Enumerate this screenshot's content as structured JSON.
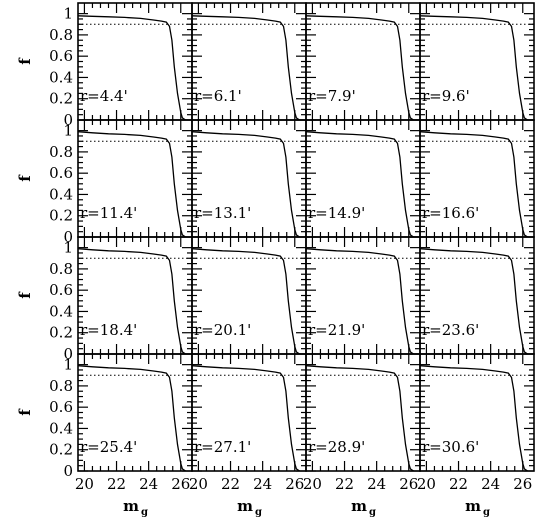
{
  "chart_data": {
    "type": "line",
    "layout": "4x4 grid of panels",
    "xlabel": "m",
    "xlabel_subscript": "g",
    "ylabel": "f",
    "xlim": [
      19.6,
      26.7
    ],
    "ylim": [
      0,
      1.1
    ],
    "xticks": [
      20,
      22,
      24,
      26
    ],
    "yticks": [
      0,
      0.2,
      0.4,
      0.6,
      0.8,
      1
    ],
    "ytick_labels": [
      "0",
      "0.2",
      "0.4",
      "0.6",
      "0.8",
      "1"
    ],
    "reference_line": {
      "y": 0.9,
      "style": "dotted"
    },
    "grid": false,
    "panels": [
      {
        "label": "r=4.4'",
        "x": [
          19.6,
          20.5,
          21.5,
          22.5,
          23.5,
          24.3,
          24.8,
          25.1,
          25.3,
          25.45,
          25.6,
          25.8,
          26.0,
          26.1,
          26.3
        ],
        "y": [
          0.98,
          0.975,
          0.97,
          0.965,
          0.955,
          0.94,
          0.93,
          0.92,
          0.88,
          0.75,
          0.5,
          0.25,
          0.07,
          0.02,
          0.0
        ]
      },
      {
        "label": "r=6.1'",
        "x": [
          19.6,
          20.5,
          21.5,
          22.5,
          23.5,
          24.3,
          24.8,
          25.1,
          25.3,
          25.45,
          25.6,
          25.8,
          26.0,
          26.1,
          26.3
        ],
        "y": [
          0.98,
          0.975,
          0.97,
          0.965,
          0.955,
          0.94,
          0.93,
          0.92,
          0.88,
          0.75,
          0.5,
          0.25,
          0.07,
          0.02,
          0.0
        ]
      },
      {
        "label": "r=7.9'",
        "x": [
          19.6,
          20.5,
          21.5,
          22.5,
          23.5,
          24.3,
          24.8,
          25.1,
          25.3,
          25.45,
          25.6,
          25.8,
          26.0,
          26.1,
          26.3
        ],
        "y": [
          0.98,
          0.975,
          0.97,
          0.965,
          0.955,
          0.94,
          0.93,
          0.92,
          0.88,
          0.75,
          0.5,
          0.25,
          0.07,
          0.02,
          0.0
        ]
      },
      {
        "label": "r=9.6'",
        "x": [
          19.6,
          20.5,
          21.5,
          22.5,
          23.5,
          24.3,
          24.8,
          25.1,
          25.3,
          25.45,
          25.6,
          25.8,
          26.0,
          26.1,
          26.3
        ],
        "y": [
          0.98,
          0.975,
          0.97,
          0.965,
          0.955,
          0.94,
          0.93,
          0.92,
          0.88,
          0.75,
          0.5,
          0.25,
          0.07,
          0.02,
          0.0
        ]
      },
      {
        "label": "r=11.4'",
        "x": [
          19.6,
          20.5,
          21.5,
          22.5,
          23.5,
          24.3,
          24.8,
          25.1,
          25.3,
          25.45,
          25.6,
          25.8,
          26.0,
          26.1,
          26.3
        ],
        "y": [
          0.99,
          0.98,
          0.97,
          0.965,
          0.955,
          0.94,
          0.93,
          0.92,
          0.88,
          0.75,
          0.5,
          0.25,
          0.07,
          0.02,
          0.0
        ]
      },
      {
        "label": "r=13.1'",
        "x": [
          19.6,
          20.5,
          21.5,
          22.5,
          23.5,
          24.3,
          24.8,
          25.1,
          25.3,
          25.45,
          25.6,
          25.8,
          26.0,
          26.1,
          26.3
        ],
        "y": [
          0.99,
          0.98,
          0.97,
          0.965,
          0.955,
          0.94,
          0.93,
          0.92,
          0.88,
          0.75,
          0.5,
          0.25,
          0.07,
          0.02,
          0.0
        ]
      },
      {
        "label": "r=14.9'",
        "x": [
          19.6,
          20.5,
          21.5,
          22.5,
          23.5,
          24.3,
          24.8,
          25.1,
          25.3,
          25.45,
          25.6,
          25.8,
          26.0,
          26.1,
          26.3
        ],
        "y": [
          0.99,
          0.98,
          0.97,
          0.965,
          0.955,
          0.94,
          0.93,
          0.92,
          0.88,
          0.75,
          0.5,
          0.25,
          0.07,
          0.02,
          0.0
        ]
      },
      {
        "label": "r=16.6'",
        "x": [
          19.6,
          20.5,
          21.5,
          22.5,
          23.5,
          24.3,
          24.8,
          25.1,
          25.3,
          25.45,
          25.6,
          25.8,
          26.0,
          26.1,
          26.3
        ],
        "y": [
          0.99,
          0.98,
          0.97,
          0.965,
          0.955,
          0.94,
          0.93,
          0.92,
          0.88,
          0.75,
          0.5,
          0.25,
          0.07,
          0.02,
          0.0
        ]
      },
      {
        "label": "r=18.4'",
        "x": [
          19.6,
          20.5,
          21.5,
          22.5,
          23.5,
          24.3,
          24.8,
          25.1,
          25.3,
          25.45,
          25.6,
          25.8,
          26.0,
          26.1,
          26.3
        ],
        "y": [
          0.99,
          0.98,
          0.97,
          0.965,
          0.955,
          0.94,
          0.93,
          0.92,
          0.88,
          0.75,
          0.5,
          0.25,
          0.07,
          0.02,
          0.0
        ]
      },
      {
        "label": "r=20.1'",
        "x": [
          19.6,
          20.5,
          21.5,
          22.5,
          23.5,
          24.3,
          24.8,
          25.1,
          25.3,
          25.45,
          25.6,
          25.8,
          26.0,
          26.1,
          26.3
        ],
        "y": [
          0.99,
          0.98,
          0.97,
          0.965,
          0.955,
          0.94,
          0.93,
          0.92,
          0.88,
          0.75,
          0.5,
          0.25,
          0.07,
          0.02,
          0.0
        ]
      },
      {
        "label": "r=21.9'",
        "x": [
          19.6,
          20.5,
          21.5,
          22.5,
          23.5,
          24.3,
          24.8,
          25.1,
          25.3,
          25.45,
          25.6,
          25.8,
          26.0,
          26.1,
          26.3
        ],
        "y": [
          0.99,
          0.98,
          0.97,
          0.965,
          0.955,
          0.94,
          0.93,
          0.92,
          0.88,
          0.75,
          0.5,
          0.25,
          0.07,
          0.02,
          0.0
        ]
      },
      {
        "label": "r=23.6'",
        "x": [
          19.6,
          20.5,
          21.5,
          22.5,
          23.5,
          24.3,
          24.8,
          25.1,
          25.3,
          25.45,
          25.6,
          25.8,
          26.0,
          26.1,
          26.3
        ],
        "y": [
          0.99,
          0.98,
          0.97,
          0.965,
          0.955,
          0.94,
          0.93,
          0.92,
          0.88,
          0.75,
          0.5,
          0.25,
          0.07,
          0.02,
          0.0
        ]
      },
      {
        "label": "r=25.4'",
        "x": [
          19.6,
          20.5,
          21.5,
          22.5,
          23.5,
          24.3,
          24.8,
          25.1,
          25.3,
          25.45,
          25.6,
          25.8,
          26.0,
          26.1,
          26.3
        ],
        "y": [
          0.99,
          0.98,
          0.97,
          0.965,
          0.955,
          0.94,
          0.93,
          0.92,
          0.88,
          0.75,
          0.5,
          0.25,
          0.07,
          0.02,
          0.0
        ]
      },
      {
        "label": "r=27.1'",
        "x": [
          19.6,
          20.5,
          21.5,
          22.5,
          23.5,
          24.3,
          24.8,
          25.1,
          25.3,
          25.45,
          25.6,
          25.8,
          26.0,
          26.1,
          26.3
        ],
        "y": [
          0.99,
          0.98,
          0.97,
          0.965,
          0.955,
          0.94,
          0.93,
          0.92,
          0.88,
          0.75,
          0.5,
          0.25,
          0.07,
          0.02,
          0.0
        ]
      },
      {
        "label": "r=28.9'",
        "x": [
          19.6,
          20.5,
          21.5,
          22.5,
          23.5,
          24.3,
          24.8,
          25.1,
          25.3,
          25.45,
          25.6,
          25.8,
          26.0,
          26.1,
          26.3
        ],
        "y": [
          0.99,
          0.98,
          0.97,
          0.965,
          0.955,
          0.94,
          0.93,
          0.92,
          0.88,
          0.75,
          0.5,
          0.25,
          0.07,
          0.02,
          0.0
        ]
      },
      {
        "label": "r=30.6'",
        "x": [
          19.6,
          20.5,
          21.5,
          22.5,
          23.5,
          24.3,
          24.8,
          25.1,
          25.3,
          25.45,
          25.6,
          25.8,
          26.0,
          26.1,
          26.3
        ],
        "y": [
          0.99,
          0.98,
          0.97,
          0.965,
          0.955,
          0.94,
          0.93,
          0.92,
          0.88,
          0.75,
          0.5,
          0.25,
          0.07,
          0.02,
          0.0
        ]
      }
    ]
  }
}
